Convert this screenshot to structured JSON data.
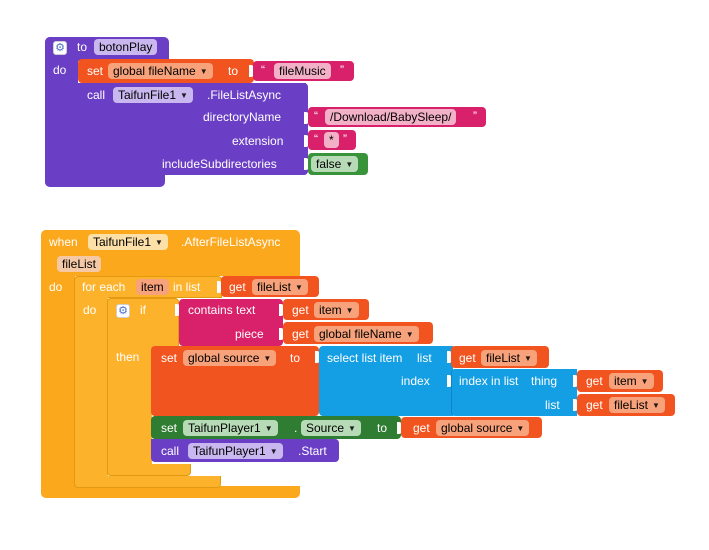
{
  "block1": {
    "event_to": "to",
    "proc_name": "botonPlay",
    "do": "do",
    "set_label": "set",
    "set_var": "global fileName",
    "to_label": "to",
    "quote_open": "“",
    "quote_close": "”",
    "music_value": "fileMusic",
    "call_label": "call",
    "component": "TaifunFile1",
    "method": ".FileListAsync",
    "param_dir": "directoryName",
    "dir_value": "/Download/BabySleep/",
    "param_ext": "extension",
    "ext_value": "*",
    "param_sub": "includeSubdirectories",
    "sub_value": "false"
  },
  "block2": {
    "when": "when",
    "component": "TaifunFile1",
    "event": ".AfterFileListAsync",
    "param": "fileList",
    "do": "do",
    "for_each": "for each",
    "item": "item",
    "in_list": "in list",
    "get": "get",
    "get_filelist": "fileList",
    "inner_do": "do",
    "if": "if",
    "contains_text": "contains text",
    "get_item": "item",
    "piece": "piece",
    "get_global_filename": "global fileName",
    "then": "then",
    "set": "set",
    "global_source": "global source",
    "to": "to",
    "select_list_item": "select list item",
    "list": "list",
    "index": "index",
    "index_in_list": "index in list",
    "thing": "thing",
    "set_player": "TaifunPlayer1",
    "dot": ".",
    "source_prop": "Source",
    "get_global_source": "global source",
    "call": "call",
    "player_method": ".Start"
  }
}
